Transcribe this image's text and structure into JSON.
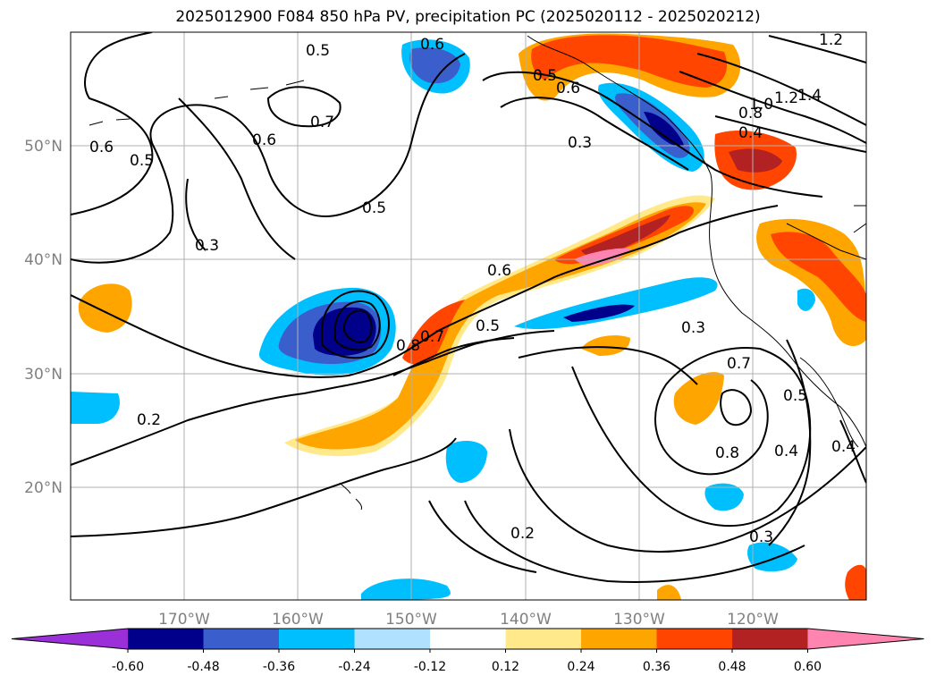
{
  "title": "2025012900 F084 850 hPa PV, precipitation PC (2025020112 - 2025020212)",
  "lon_ticks": [
    "170°W",
    "160°W",
    "150°W",
    "140°W",
    "130°W",
    "120°W"
  ],
  "lat_ticks": [
    "50°N",
    "40°N",
    "30°N",
    "20°N"
  ],
  "colorbar": {
    "labels": [
      "-0.60",
      "-0.48",
      "-0.36",
      "-0.24",
      "-0.12",
      "0.12",
      "0.24",
      "0.36",
      "0.48",
      "0.60"
    ],
    "colors": [
      "#9b30d9",
      "#00008b",
      "#3a5fcd",
      "#00bfff",
      "#b0e2ff",
      "#ffffff",
      "#ffe98a",
      "#ffa500",
      "#ff4500",
      "#b22222",
      "#ff85b0"
    ]
  },
  "contour_labels": [
    "0.6",
    "0.5",
    "0.6",
    "0.7",
    "0.6",
    "0.5",
    "0.3",
    "0.5",
    "0.3",
    "1.2",
    "1.4",
    "1.2",
    "1.0",
    "0.8",
    "0.4",
    "0.6",
    "0.5",
    "0.8",
    "0.7",
    "0.5",
    "0.3",
    "0.6",
    "0.7",
    "0.8",
    "0.5",
    "0.4",
    "0.4",
    "0.2",
    "0.2",
    "0.3"
  ]
}
